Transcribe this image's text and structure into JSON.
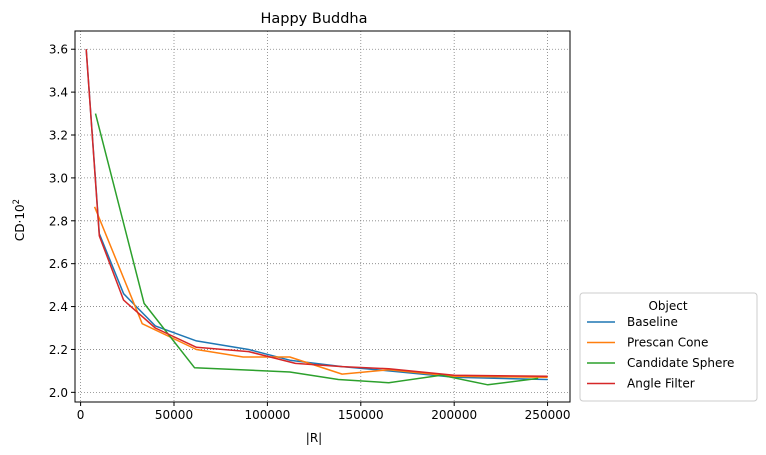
{
  "chart_data": {
    "type": "line",
    "title": "Happy Buddha",
    "xlabel": "|R|",
    "ylabel_base": "CD·10",
    "ylabel_exp": "2",
    "xlim": [
      -3000,
      262000
    ],
    "ylim": [
      1.955,
      3.685
    ],
    "xticks": [
      0,
      50000,
      100000,
      150000,
      200000,
      250000
    ],
    "xtick_labels": [
      "0",
      "50000",
      "100000",
      "150000",
      "200000",
      "250000"
    ],
    "yticks": [
      2.0,
      2.2,
      2.4,
      2.6,
      2.8,
      3.0,
      3.2,
      3.4,
      3.6
    ],
    "ytick_labels": [
      "2.0",
      "2.2",
      "2.4",
      "2.6",
      "2.8",
      "3.0",
      "3.2",
      "3.4",
      "3.6"
    ],
    "grid": true,
    "legend": {
      "title": "Object",
      "placement": "outside-lower-right"
    },
    "series": [
      {
        "name": "Baseline",
        "color": "#1f77b4",
        "x": [
          3000,
          10000,
          23000,
          40000,
          62000,
          90000,
          112000,
          140000,
          165000,
          200000,
          250000
        ],
        "y": [
          3.6,
          2.74,
          2.46,
          2.31,
          2.24,
          2.2,
          2.15,
          2.12,
          2.1,
          2.07,
          2.06
        ]
      },
      {
        "name": "Prescan Cone",
        "color": "#ff7f0e",
        "x": [
          7500,
          33000,
          62000,
          87000,
          112000,
          140000,
          165000,
          200000,
          250000
        ],
        "y": [
          2.865,
          2.32,
          2.2,
          2.165,
          2.165,
          2.085,
          2.105,
          2.075,
          2.07
        ]
      },
      {
        "name": "Candidate Sphere",
        "color": "#2ca02c",
        "x": [
          8000,
          34000,
          61000,
          112000,
          138000,
          165000,
          193000,
          218000,
          245000
        ],
        "y": [
          3.3,
          2.415,
          2.115,
          2.095,
          2.06,
          2.045,
          2.08,
          2.035,
          2.065
        ]
      },
      {
        "name": "Angle Filter",
        "color": "#d62728",
        "x": [
          3000,
          10000,
          23000,
          40000,
          62000,
          90000,
          115000,
          140000,
          165000,
          200000,
          250000
        ],
        "y": [
          3.6,
          2.73,
          2.43,
          2.3,
          2.21,
          2.19,
          2.135,
          2.12,
          2.11,
          2.08,
          2.075
        ]
      }
    ]
  }
}
